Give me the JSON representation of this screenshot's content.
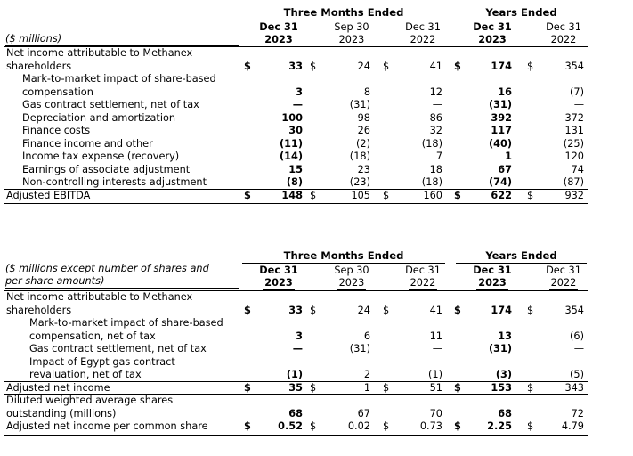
{
  "table1": {
    "group_three_months": "Three Months Ended",
    "group_years": "Years Ended",
    "col_heads": [
      {
        "l1": "Dec 31",
        "l2": "2023",
        "bold": true
      },
      {
        "l1": "Sep 30",
        "l2": "2023",
        "bold": false
      },
      {
        "l1": "Dec 31",
        "l2": "2022",
        "bold": false
      },
      {
        "l1": "Dec 31",
        "l2": "2023",
        "bold": true
      },
      {
        "l1": "Dec 31",
        "l2": "2022",
        "bold": false
      }
    ],
    "unit_label": "($ millions)",
    "rows": [
      {
        "label": [
          "Net income attributable to Methanex",
          "shareholders"
        ],
        "indent": 0,
        "dollar": true,
        "values": [
          "33",
          "24",
          "41",
          "174",
          "354"
        ]
      },
      {
        "label": [
          "Mark-to-market impact of share-based",
          "compensation"
        ],
        "indent": 1,
        "dollar": false,
        "values": [
          "3",
          "8",
          "12",
          "16",
          "(7)"
        ]
      },
      {
        "label": [
          "Gas contract settlement, net of tax"
        ],
        "indent": 1,
        "dollar": false,
        "values": [
          "—",
          "(31)",
          "—",
          "(31)",
          "—"
        ]
      },
      {
        "label": [
          "Depreciation and amortization"
        ],
        "indent": 1,
        "dollar": false,
        "values": [
          "100",
          "98",
          "86",
          "392",
          "372"
        ]
      },
      {
        "label": [
          "Finance costs"
        ],
        "indent": 1,
        "dollar": false,
        "values": [
          "30",
          "26",
          "32",
          "117",
          "131"
        ]
      },
      {
        "label": [
          "Finance income and other"
        ],
        "indent": 1,
        "dollar": false,
        "values": [
          "(11)",
          "(2)",
          "(18)",
          "(40)",
          "(25)"
        ]
      },
      {
        "label": [
          "Income tax expense (recovery)"
        ],
        "indent": 1,
        "dollar": false,
        "values": [
          "(14)",
          "(18)",
          "7",
          "1",
          "120"
        ]
      },
      {
        "label": [
          "Earnings of associate adjustment"
        ],
        "indent": 1,
        "dollar": false,
        "values": [
          "15",
          "23",
          "18",
          "67",
          "74"
        ]
      },
      {
        "label": [
          "Non-controlling interests adjustment"
        ],
        "indent": 1,
        "dollar": false,
        "values": [
          "(8)",
          "(23)",
          "(18)",
          "(74)",
          "(87)"
        ]
      },
      {
        "label": [
          "Adjusted EBITDA"
        ],
        "indent": 0,
        "dollar": true,
        "values": [
          "148",
          "105",
          "160",
          "622",
          "932"
        ]
      }
    ]
  },
  "table2": {
    "group_three_months": "Three Months Ended",
    "group_years": "Years Ended",
    "col_heads": [
      {
        "l1": "Dec 31",
        "l2": "2023",
        "bold": true
      },
      {
        "l1": "Sep 30",
        "l2": "2023",
        "bold": false
      },
      {
        "l1": "Dec 31",
        "l2": "2022",
        "bold": false
      },
      {
        "l1": "Dec 31",
        "l2": "2023",
        "bold": true
      },
      {
        "l1": "Dec 31",
        "l2": "2022",
        "bold": false
      }
    ],
    "unit_label": [
      "($ millions except number of shares and",
      "per share amounts)"
    ],
    "rows": [
      {
        "label": [
          "Net income attributable to Methanex",
          "shareholders"
        ],
        "indent": 0,
        "dollar": true,
        "values": [
          "33",
          "24",
          "41",
          "174",
          "354"
        ]
      },
      {
        "label": [
          "Mark-to-market impact of share-based",
          "compensation, net of tax"
        ],
        "indent": 2,
        "dollar": false,
        "values": [
          "3",
          "6",
          "11",
          "13",
          "(6)"
        ]
      },
      {
        "label": [
          "Gas contract settlement, net of tax"
        ],
        "indent": 2,
        "dollar": false,
        "values": [
          "—",
          "(31)",
          "—",
          "(31)",
          "—"
        ]
      },
      {
        "label": [
          "Impact of Egypt gas contract",
          "revaluation, net of tax"
        ],
        "indent": 2,
        "dollar": false,
        "values": [
          "(1)",
          "2",
          "(1)",
          "(3)",
          "(5)"
        ]
      },
      {
        "label": [
          "Adjusted net income"
        ],
        "indent": 0,
        "dollar": true,
        "values": [
          "35",
          "1",
          "51",
          "153",
          "343"
        ]
      },
      {
        "label": [
          "Diluted weighted average shares",
          "outstanding (millions)"
        ],
        "indent": 0,
        "dollar": false,
        "values": [
          "68",
          "67",
          "70",
          "68",
          "72"
        ]
      },
      {
        "label": [
          "Adjusted net income per common share"
        ],
        "indent": 0,
        "dollar": true,
        "values": [
          "0.52",
          "0.02",
          "0.73",
          "2.25",
          "4.79"
        ]
      }
    ]
  },
  "currency_symbol": "$"
}
